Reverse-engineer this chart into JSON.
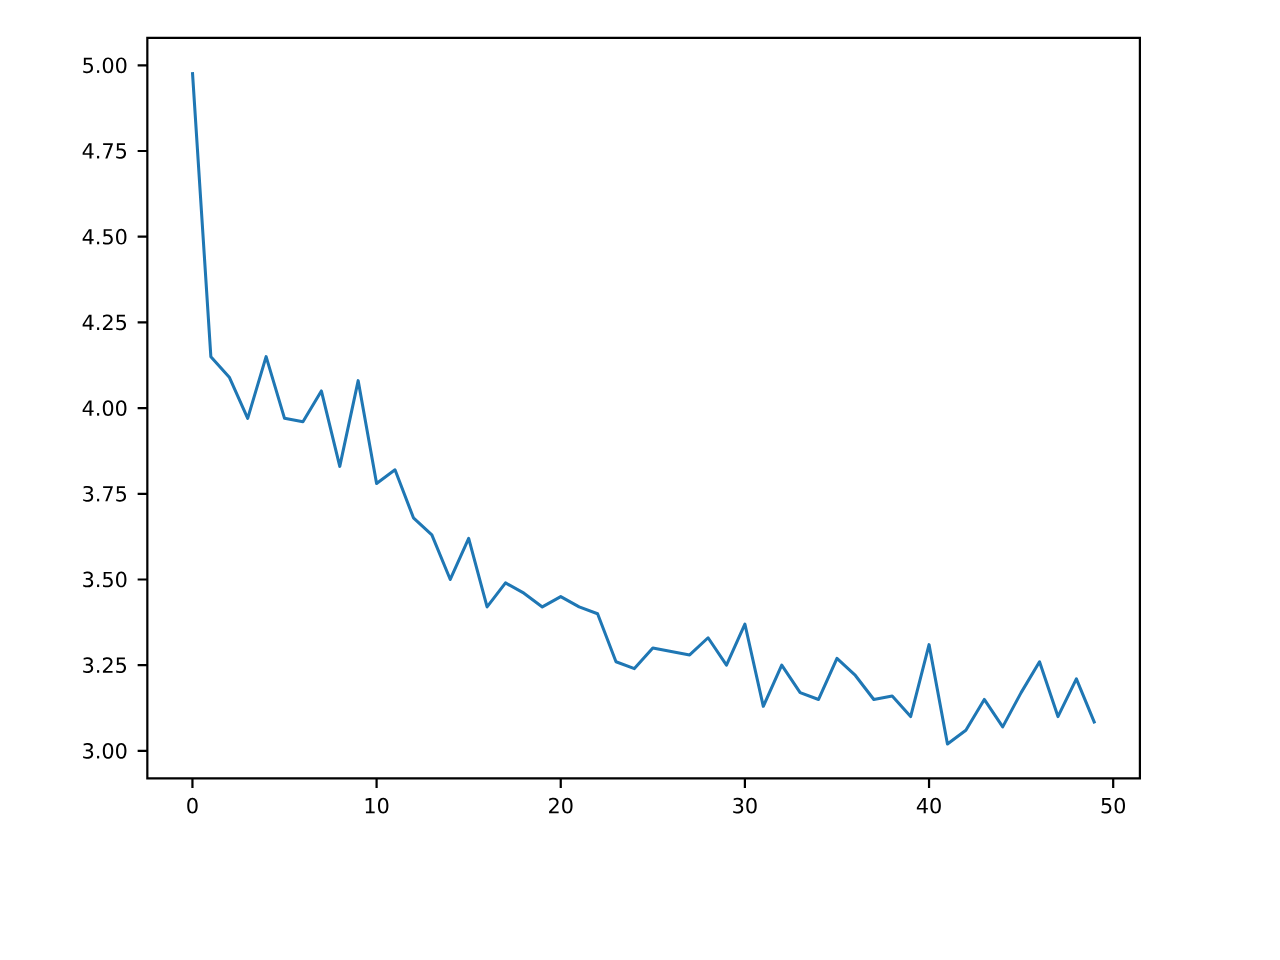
{
  "chart_data": {
    "type": "line",
    "x": [
      0,
      1,
      2,
      3,
      4,
      5,
      6,
      7,
      8,
      9,
      10,
      11,
      12,
      13,
      14,
      15,
      16,
      17,
      18,
      19,
      20,
      21,
      22,
      23,
      24,
      25,
      26,
      27,
      28,
      29,
      30,
      31,
      32,
      33,
      34,
      35,
      36,
      37,
      38,
      39,
      40,
      41,
      42,
      43,
      44,
      45,
      46,
      47,
      48,
      49
    ],
    "values": [
      4.98,
      4.15,
      4.09,
      3.97,
      4.15,
      3.97,
      3.96,
      4.05,
      3.83,
      4.08,
      3.78,
      3.82,
      3.68,
      3.63,
      3.5,
      3.62,
      3.42,
      3.49,
      3.46,
      3.42,
      3.45,
      3.42,
      3.4,
      3.26,
      3.24,
      3.3,
      3.29,
      3.28,
      3.33,
      3.25,
      3.37,
      3.13,
      3.25,
      3.17,
      3.15,
      3.27,
      3.22,
      3.15,
      3.16,
      3.1,
      3.31,
      3.02,
      3.06,
      3.15,
      3.07,
      3.17,
      3.26,
      3.1,
      3.21,
      3.08
    ],
    "color": "#1f77b4",
    "xlim": [
      -2.45,
      51.45
    ],
    "ylim": [
      2.92,
      5.08
    ],
    "xticks": [
      0,
      10,
      20,
      30,
      40,
      50
    ],
    "yticks": [
      {
        "value": 3.0,
        "label": "3.00"
      },
      {
        "value": 3.25,
        "label": "3.25"
      },
      {
        "value": 3.5,
        "label": "3.50"
      },
      {
        "value": 3.75,
        "label": "3.75"
      },
      {
        "value": 4.0,
        "label": "4.00"
      },
      {
        "value": 4.25,
        "label": "4.25"
      },
      {
        "value": 4.5,
        "label": "4.50"
      },
      {
        "value": 4.75,
        "label": "4.75"
      },
      {
        "value": 5.0,
        "label": "5.00"
      }
    ],
    "grid": false,
    "marker": "none",
    "line_style": "solid"
  }
}
